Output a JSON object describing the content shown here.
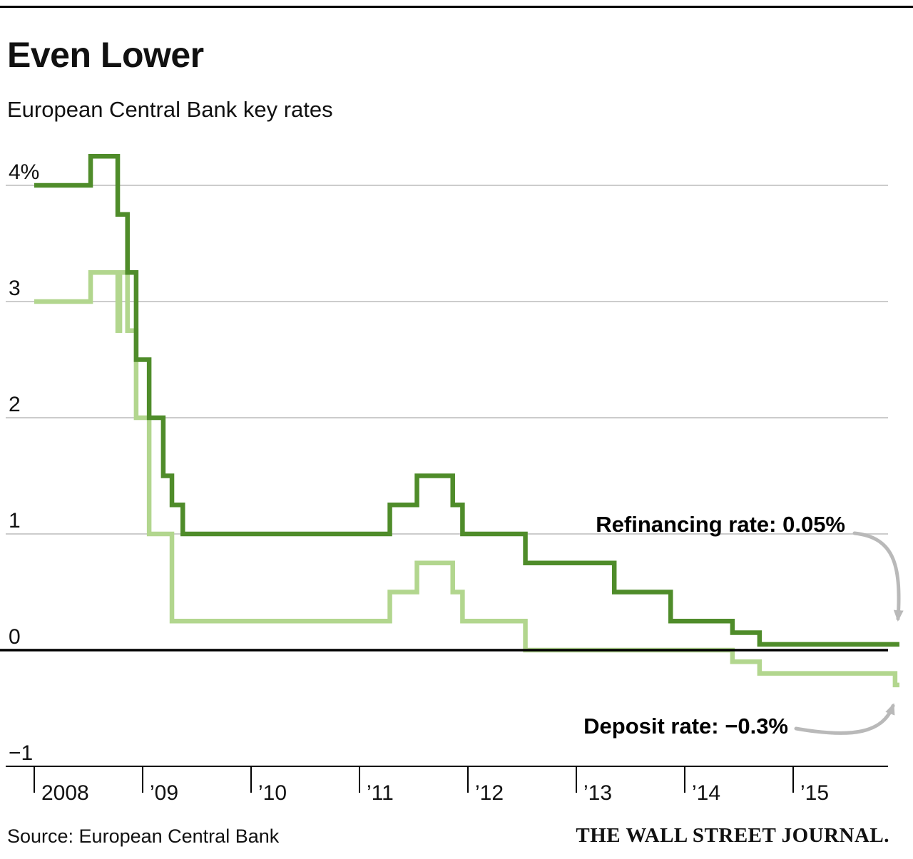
{
  "page": {
    "title": "Even Lower",
    "subtitle": "European Central Bank key rates",
    "source": "Source: European Central Bank",
    "brand": "THE WALL STREET JOURNAL."
  },
  "chart_data": {
    "type": "line",
    "line_style": "step-after",
    "title": "Even Lower",
    "subtitle": "European Central Bank key rates",
    "xlabel": "",
    "ylabel": "",
    "units": "percent",
    "xlim": [
      2008,
      2015.98
    ],
    "ylim": [
      -1,
      4.35
    ],
    "grid": true,
    "grid_color": "#cccccc",
    "zero_line_color": "#000000",
    "axis_color": "#000000",
    "arrow_color": "#b9b9b9",
    "y_ticks": [
      {
        "value": 4,
        "label": "4%"
      },
      {
        "value": 3,
        "label": "3"
      },
      {
        "value": 2,
        "label": "2"
      },
      {
        "value": 1,
        "label": "1"
      },
      {
        "value": 0,
        "label": "0"
      },
      {
        "value": -1,
        "label": "−1"
      }
    ],
    "x_ticks": [
      {
        "value": 2008,
        "label": "2008"
      },
      {
        "value": 2009,
        "label": "’09"
      },
      {
        "value": 2010,
        "label": "’10"
      },
      {
        "value": 2011,
        "label": "’11"
      },
      {
        "value": 2012,
        "label": "’12"
      },
      {
        "value": 2013,
        "label": "’13"
      },
      {
        "value": 2014,
        "label": "’14"
      },
      {
        "value": 2015,
        "label": "’15"
      }
    ],
    "series": [
      {
        "id": "refinancing-line",
        "name": "Refinancing rate",
        "current_value": 0.05,
        "current_value_label": "Refinancing rate: 0.05%",
        "color": "#4f8c2a",
        "points": [
          [
            2008.0,
            4.0
          ],
          [
            2008.52,
            4.25
          ],
          [
            2008.77,
            3.75
          ],
          [
            2008.86,
            3.25
          ],
          [
            2008.94,
            2.5
          ],
          [
            2009.06,
            2.0
          ],
          [
            2009.19,
            1.5
          ],
          [
            2009.27,
            1.25
          ],
          [
            2009.37,
            1.0
          ],
          [
            2011.28,
            1.25
          ],
          [
            2011.53,
            1.5
          ],
          [
            2011.86,
            1.25
          ],
          [
            2011.95,
            1.0
          ],
          [
            2012.53,
            0.75
          ],
          [
            2013.35,
            0.5
          ],
          [
            2013.87,
            0.25
          ],
          [
            2014.44,
            0.15
          ],
          [
            2014.69,
            0.05
          ]
        ]
      },
      {
        "id": "deposit-line",
        "name": "Deposit rate",
        "current_value": -0.3,
        "current_value_label": "Deposit rate: −0.3%",
        "color": "#b2d68e",
        "points": [
          [
            2008.0,
            3.0
          ],
          [
            2008.52,
            3.25
          ],
          [
            2008.77,
            2.75
          ],
          [
            2008.79,
            3.25
          ],
          [
            2008.86,
            2.75
          ],
          [
            2008.94,
            2.0
          ],
          [
            2009.06,
            1.0
          ],
          [
            2009.27,
            0.25
          ],
          [
            2011.28,
            0.5
          ],
          [
            2011.53,
            0.75
          ],
          [
            2011.86,
            0.5
          ],
          [
            2011.95,
            0.25
          ],
          [
            2012.53,
            0.0
          ],
          [
            2014.44,
            -0.1
          ],
          [
            2014.69,
            -0.2
          ],
          [
            2015.94,
            -0.3
          ]
        ]
      }
    ]
  }
}
